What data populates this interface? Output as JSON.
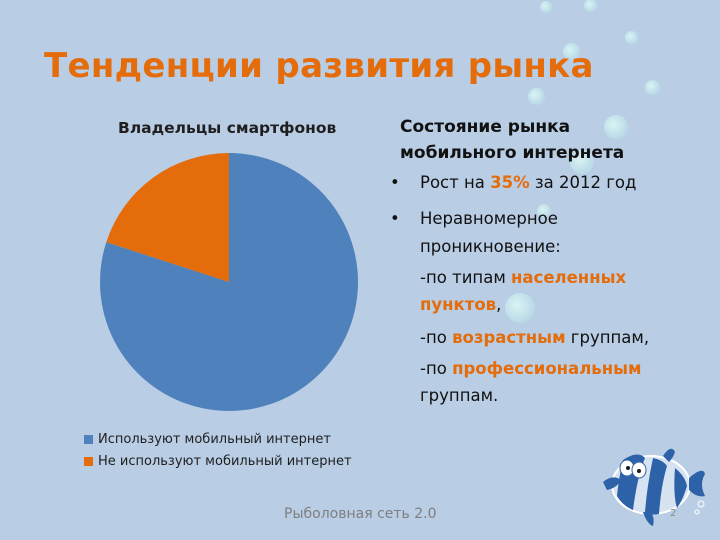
{
  "slide": {
    "title": "Тенденции развития рынка",
    "background_color": "#b9cde5",
    "accent_color": "#e46c0a",
    "footer": "Рыболовная сеть 2.0",
    "slide_number": "2"
  },
  "chart": {
    "title": "Владельцы смартфонов",
    "legend": [
      {
        "label": "Используют мобильный интернет",
        "color": "#4f81bd"
      },
      {
        "label": "Не используют мобильный интернет",
        "color": "#e46c0a"
      }
    ]
  },
  "text_block": {
    "heading_line1": "Состояние рынка",
    "heading_line2": "мобильного интернета",
    "bullet1": {
      "prefix": "Рост на ",
      "highlight": "35%",
      "suffix": " за 2012 год"
    },
    "bullet2": {
      "line1": "Неравномерное",
      "line2": "проникновение:",
      "item1_prefix": "-по типам ",
      "item1_highlight_a": "населенных",
      "item1_highlight_b": "пунктов",
      "item1_suffix": ",",
      "item2_prefix": "-по ",
      "item2_highlight": "возрастным",
      "item2_suffix": " группам,",
      "item3_prefix": "-по ",
      "item3_highlight": "профессиональным",
      "item3_suffix": "группам."
    },
    "bullet_glyph": "•"
  },
  "chart_data": {
    "type": "pie",
    "title": "Владельцы смартфонов",
    "categories": [
      "Используют мобильный интернет",
      "Не используют мобильный интернет"
    ],
    "values": [
      80,
      20
    ],
    "colors": [
      "#4f81bd",
      "#e46c0a"
    ],
    "legend_position": "bottom",
    "start_angle_deg": 0,
    "direction": "clockwise"
  }
}
